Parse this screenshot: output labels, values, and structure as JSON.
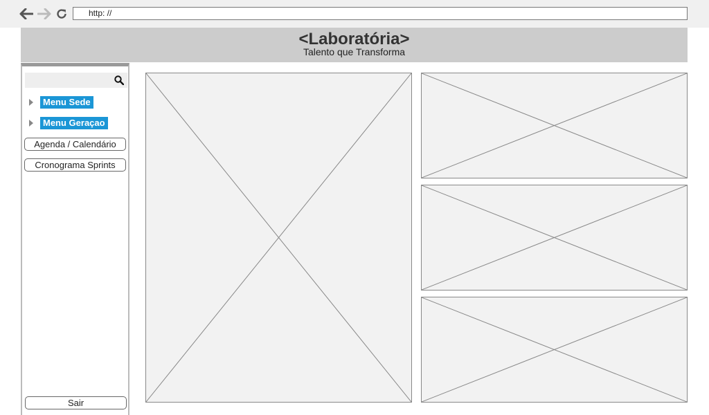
{
  "browser": {
    "url": "http: //",
    "icons": {
      "back": "arrow-left-icon",
      "forward": "arrow-right-icon",
      "reload": "reload-icon"
    }
  },
  "header": {
    "title": "<Laboratória>",
    "subtitle": "Talento que Transforma"
  },
  "sidebar": {
    "search_placeholder": "",
    "menus": [
      {
        "label": "Menu Sede"
      },
      {
        "label": "Menu Geraçao"
      }
    ],
    "buttons": [
      {
        "label": "Agenda / Calendário"
      },
      {
        "label": "Cronograma Sprints"
      }
    ],
    "logout_label": "Sair"
  },
  "colors": {
    "accent": "#1b96d6",
    "header_bg": "#cccccc",
    "placeholder_bg": "#f2f2f2"
  }
}
